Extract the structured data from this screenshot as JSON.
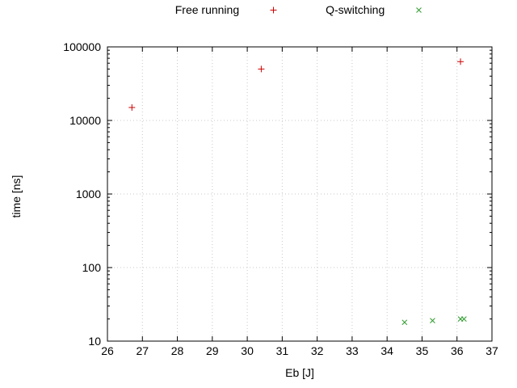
{
  "chart_data": {
    "type": "scatter",
    "title": "",
    "xlabel": "Eb [J]",
    "ylabel": "time [ns]",
    "xlim": [
      26,
      37
    ],
    "ylim": [
      10,
      100000
    ],
    "x_scale": "linear",
    "y_scale": "log",
    "grid": true,
    "legend_position": "top-center",
    "xticks": [
      26,
      27,
      28,
      29,
      30,
      31,
      32,
      33,
      34,
      35,
      36,
      37
    ],
    "yticks": [
      10,
      100,
      1000,
      10000,
      100000
    ],
    "ytick_labels": [
      "10",
      "100",
      "1000",
      "10000",
      "100000"
    ],
    "colors": {
      "background": "#ffffff",
      "axis": "#000000",
      "grid": "#c8c8c8",
      "text": "#000000"
    },
    "series": [
      {
        "name": "Free running",
        "marker": "plus",
        "color": "#cc0000",
        "points": [
          [
            26.7,
            15000
          ],
          [
            30.4,
            50000
          ],
          [
            36.1,
            63000
          ]
        ]
      },
      {
        "name": "Q-switching",
        "marker": "cross",
        "color": "#2e9b2e",
        "points": [
          [
            34.5,
            18
          ],
          [
            35.3,
            19
          ],
          [
            36.1,
            20
          ],
          [
            36.2,
            20
          ]
        ]
      }
    ]
  }
}
